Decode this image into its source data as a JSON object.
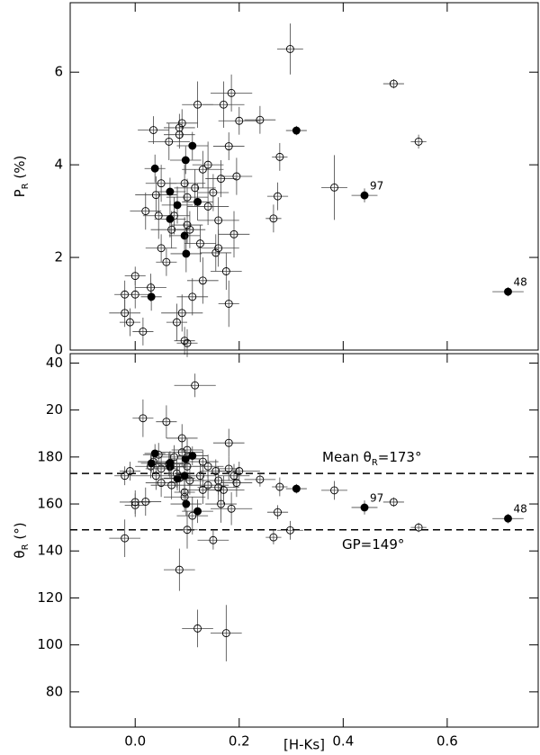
{
  "chart_data": [
    {
      "type": "scatter",
      "ylabel": {
        "main": "P",
        "sub": "R",
        "rest": " (%)"
      },
      "xlim": [
        -0.125,
        0.775
      ],
      "xticks": [
        0,
        0.2,
        0.4,
        0.6
      ],
      "ylim": [
        0,
        7.5
      ],
      "yticks": [
        0,
        2,
        4,
        6
      ],
      "groups": [
        {
          "filled": false,
          "x": [
            -0.02,
            -0.01,
            -0.02,
            0.0,
            0.0,
            0.015,
            0.03,
            0.035,
            0.04,
            0.05,
            0.05,
            0.06,
            0.07,
            0.075,
            0.08,
            0.085,
            0.09,
            0.09,
            0.095,
            0.1,
            0.1,
            0.105,
            0.11,
            0.115,
            0.12,
            0.125,
            0.13,
            0.13,
            0.14,
            0.15,
            0.155,
            0.16,
            0.165,
            0.17,
            0.175,
            0.18,
            0.18,
            0.185,
            0.19,
            0.195,
            0.2,
            0.02,
            0.045,
            0.065,
            0.085,
            0.1,
            0.095,
            0.14,
            0.16,
            0.298,
            0.497,
            0.545,
            0.383,
            0.278,
            0.274,
            0.266,
            0.24
          ],
          "y": [
            1.2,
            0.6,
            0.8,
            1.6,
            1.2,
            0.4,
            1.35,
            4.75,
            3.35,
            2.2,
            3.6,
            1.9,
            2.6,
            2.9,
            0.6,
            4.8,
            0.8,
            4.9,
            0.2,
            0.15,
            3.3,
            2.6,
            1.15,
            3.5,
            5.3,
            2.3,
            3.9,
            1.5,
            3.1,
            3.4,
            2.1,
            2.8,
            3.7,
            5.3,
            1.7,
            4.4,
            1.0,
            5.55,
            2.5,
            3.75,
            4.95,
            3.0,
            2.9,
            4.5,
            4.65,
            2.7,
            3.6,
            4.0,
            2.2,
            6.5,
            5.75,
            4.5,
            3.51,
            4.17,
            3.32,
            2.84,
            4.97
          ],
          "xerr": [
            0.02,
            0.02,
            0.03,
            0.02,
            0.03,
            0.02,
            0.03,
            0.03,
            0.04,
            0.03,
            0.03,
            0.02,
            0.04,
            0.03,
            0.02,
            0.03,
            0.04,
            0.03,
            0.02,
            0.02,
            0.04,
            0.03,
            0.03,
            0.04,
            0.03,
            0.03,
            0.04,
            0.03,
            0.04,
            0.03,
            0.03,
            0.04,
            0.03,
            0.04,
            0.03,
            0.03,
            0.02,
            0.04,
            0.03,
            0.03,
            0.04,
            0.03,
            0.03,
            0.04,
            0.03,
            0.03,
            0.04,
            0.03,
            0.04,
            0.025,
            0.02,
            0.015,
            0.025,
            0.015,
            0.02,
            0.015,
            0.03
          ],
          "yerr": [
            0.3,
            0.3,
            0.3,
            0.2,
            0.3,
            0.3,
            0.3,
            0.3,
            0.4,
            0.3,
            0.4,
            0.3,
            0.4,
            0.4,
            0.4,
            0.3,
            0.4,
            0.3,
            0.3,
            0.3,
            0.4,
            0.4,
            0.4,
            0.4,
            0.5,
            0.4,
            0.4,
            0.5,
            0.4,
            0.4,
            0.4,
            0.5,
            0.4,
            0.5,
            0.4,
            0.3,
            0.5,
            0.4,
            0.5,
            0.4,
            0.3,
            0.4,
            0.5,
            0.4,
            0.3,
            0.4,
            0.4,
            0.5,
            0.4,
            0.55,
            0.1,
            0.15,
            0.7,
            0.3,
            0.3,
            0.3,
            0.3
          ]
        },
        {
          "filled": true,
          "x": [
            0.038,
            0.031,
            0.067,
            0.067,
            0.081,
            0.095,
            0.097,
            0.098,
            0.11,
            0.12,
            0.31,
            0.441,
            0.717
          ],
          "y": [
            3.92,
            1.15,
            2.83,
            3.42,
            3.13,
            2.47,
            4.1,
            2.08,
            4.41,
            3.2,
            4.74,
            3.34,
            1.26
          ],
          "xerr": [
            0.02,
            0.02,
            0.03,
            0.03,
            0.03,
            0.03,
            0.03,
            0.03,
            0.03,
            0.03,
            0.02,
            0.025,
            0.03
          ],
          "yerr": [
            0.3,
            0.3,
            0.4,
            0.3,
            0.4,
            0.4,
            0.3,
            0.4,
            0.3,
            0.4,
            0.1,
            0.15,
            0.1
          ],
          "labels": [
            null,
            null,
            null,
            null,
            null,
            null,
            null,
            null,
            null,
            null,
            null,
            "97",
            "48"
          ]
        }
      ]
    },
    {
      "type": "scatter",
      "xlabel": "[H-Ks]",
      "ylabel": {
        "main": "θ",
        "sub": "R",
        "rest": " (°)"
      },
      "xlim": [
        -0.125,
        0.775
      ],
      "xticks": [
        {
          "value": 0,
          "label": "0.0"
        },
        {
          "value": 0.2,
          "label": "0.2"
        },
        {
          "value": 0.4,
          "label": "0.4"
        },
        {
          "value": 0.6,
          "label": "0.6"
        }
      ],
      "ylim": [
        65,
        224
      ],
      "yticks": [
        80,
        100,
        120,
        140,
        160,
        180,
        {
          "value": 200,
          "label": "20"
        },
        {
          "value": 220,
          "label": "40"
        }
      ],
      "hlines": [
        {
          "value": 173,
          "label": {
            "main": "Mean θ",
            "sub": "R",
            "rest": "=173°"
          }
        },
        {
          "value": 149,
          "label": {
            "main": "GP=149°"
          }
        }
      ],
      "groups": [
        {
          "filled": false,
          "x": [
            -0.02,
            -0.01,
            -0.02,
            0.0,
            0.0,
            0.015,
            0.03,
            0.035,
            0.04,
            0.05,
            0.05,
            0.06,
            0.07,
            0.075,
            0.08,
            0.085,
            0.09,
            0.09,
            0.095,
            0.1,
            0.1,
            0.105,
            0.11,
            0.115,
            0.12,
            0.125,
            0.13,
            0.13,
            0.14,
            0.15,
            0.155,
            0.16,
            0.165,
            0.17,
            0.175,
            0.18,
            0.18,
            0.185,
            0.19,
            0.195,
            0.2,
            0.02,
            0.045,
            0.065,
            0.085,
            0.1,
            0.095,
            0.14,
            0.16,
            0.298,
            0.497,
            0.545,
            0.383,
            0.278,
            0.274,
            0.266,
            0.24
          ],
          "y": [
            172,
            174,
            145.4,
            159.5,
            160.8,
            196.5,
            176,
            178,
            172,
            169,
            175,
            195,
            168,
            180,
            173,
            132,
            182,
            188,
            165,
            149,
            176,
            170,
            155,
            210.5,
            107,
            172,
            166,
            178,
            168,
            144.6,
            174,
            170,
            160,
            166,
            105,
            186,
            175,
            158,
            172,
            169,
            174,
            161,
            181,
            177,
            171,
            183,
            163,
            176,
            167,
            148.8,
            160.8,
            150,
            165.8,
            167.3,
            156.5,
            145.8,
            170.4
          ],
          "xerr": [
            0.02,
            0.02,
            0.03,
            0.02,
            0.03,
            0.02,
            0.03,
            0.03,
            0.04,
            0.03,
            0.03,
            0.02,
            0.04,
            0.03,
            0.02,
            0.03,
            0.04,
            0.03,
            0.02,
            0.02,
            0.04,
            0.03,
            0.03,
            0.04,
            0.03,
            0.03,
            0.04,
            0.03,
            0.04,
            0.03,
            0.03,
            0.04,
            0.03,
            0.04,
            0.03,
            0.03,
            0.02,
            0.04,
            0.03,
            0.03,
            0.04,
            0.03,
            0.03,
            0.04,
            0.03,
            0.03,
            0.04,
            0.03,
            0.04,
            0.025,
            0.02,
            0.015,
            0.025,
            0.015,
            0.02,
            0.015,
            0.03
          ],
          "yerr": [
            4,
            4,
            8,
            5,
            5,
            8,
            5,
            5,
            6,
            6,
            5,
            7,
            6,
            5,
            6,
            9,
            6,
            6,
            7,
            8,
            5,
            6,
            8,
            5,
            8,
            5,
            6,
            5,
            6,
            4,
            5,
            6,
            8,
            6,
            12,
            6,
            5,
            7,
            5,
            6,
            4,
            6,
            5,
            5,
            6,
            5,
            6,
            5,
            6,
            4,
            2,
            2,
            4,
            4,
            3,
            3,
            3
          ]
        },
        {
          "filled": true,
          "x": [
            0.038,
            0.031,
            0.067,
            0.067,
            0.081,
            0.095,
            0.097,
            0.098,
            0.11,
            0.12,
            0.31,
            0.441,
            0.717
          ],
          "y": [
            181.5,
            177.3,
            175.8,
            177.5,
            170.8,
            172,
            179.2,
            160,
            180.5,
            156.9,
            166.5,
            158.5,
            153.8
          ],
          "xerr": [
            0.02,
            0.02,
            0.03,
            0.03,
            0.03,
            0.03,
            0.03,
            0.03,
            0.03,
            0.03,
            0.02,
            0.025,
            0.03
          ],
          "yerr": [
            4,
            4,
            5,
            5,
            5,
            5,
            4,
            5,
            4,
            5,
            2,
            3,
            2
          ],
          "labels": [
            null,
            null,
            null,
            null,
            null,
            null,
            null,
            null,
            null,
            null,
            null,
            "97",
            "48"
          ]
        }
      ]
    }
  ]
}
